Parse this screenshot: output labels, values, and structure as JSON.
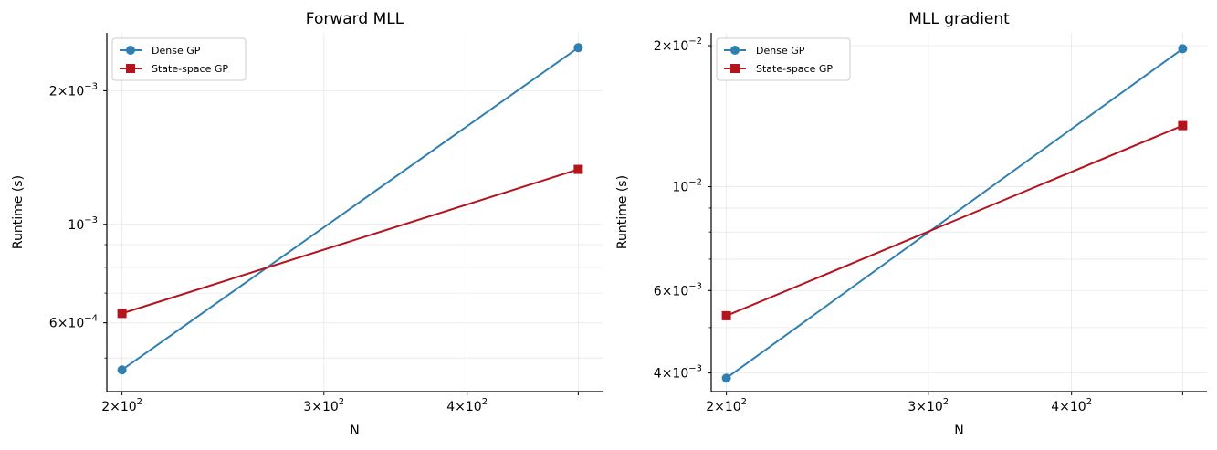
{
  "chart_data": [
    {
      "type": "line",
      "title": "Forward MLL",
      "xlabel": "N",
      "ylabel": "Runtime (s)",
      "xscale": "log",
      "yscale": "log",
      "xlim": [
        194,
        525
      ],
      "ylim": [
        0.00042,
        0.0027
      ],
      "x": [
        200,
        500
      ],
      "x_ticks": [
        {
          "value": 200,
          "label": "2×10",
          "exp": "2"
        },
        {
          "value": 300,
          "label": "3×10",
          "exp": "2"
        },
        {
          "value": 400,
          "label": "4×10",
          "exp": "2"
        }
      ],
      "y_ticks": [
        {
          "value": 0.0006,
          "label": "6×10",
          "exp": "−4"
        },
        {
          "value": 0.001,
          "label": "10",
          "exp": "−3"
        },
        {
          "value": 0.002,
          "label": "2×10",
          "exp": "−3"
        }
      ],
      "series": [
        {
          "name": "Dense GP",
          "values": [
            0.00047,
            0.0025
          ],
          "color": "#2f7fb0",
          "marker": "circle"
        },
        {
          "name": "State-space GP",
          "values": [
            0.00063,
            0.00133
          ],
          "color": "#b5141e",
          "marker": "square"
        }
      ],
      "grid": true,
      "legend": "top-left"
    },
    {
      "type": "line",
      "title": "MLL gradient",
      "xlabel": "N",
      "ylabel": "Runtime (s)",
      "xscale": "log",
      "yscale": "log",
      "xlim": [
        194,
        525
      ],
      "ylim": [
        0.00365,
        0.0213
      ],
      "x": [
        200,
        500
      ],
      "x_ticks": [
        {
          "value": 200,
          "label": "2×10",
          "exp": "2"
        },
        {
          "value": 300,
          "label": "3×10",
          "exp": "2"
        },
        {
          "value": 400,
          "label": "4×10",
          "exp": "2"
        }
      ],
      "y_ticks": [
        {
          "value": 0.004,
          "label": "4×10",
          "exp": "−3"
        },
        {
          "value": 0.006,
          "label": "6×10",
          "exp": "−3"
        },
        {
          "value": 0.01,
          "label": "10",
          "exp": "−2"
        },
        {
          "value": 0.02,
          "label": "2×10",
          "exp": "−2"
        }
      ],
      "series": [
        {
          "name": "Dense GP",
          "values": [
            0.0039,
            0.0197
          ],
          "color": "#2f7fb0",
          "marker": "circle"
        },
        {
          "name": "State-space GP",
          "values": [
            0.0053,
            0.0135
          ],
          "color": "#b5141e",
          "marker": "square"
        }
      ],
      "grid": true,
      "legend": "top-left"
    }
  ]
}
